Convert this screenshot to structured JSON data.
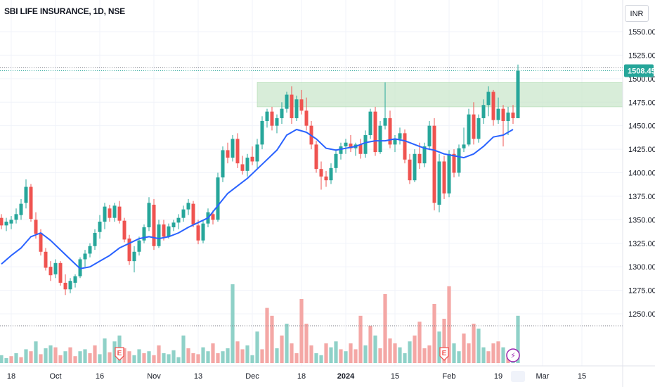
{
  "header": {
    "title": "SBI LIFE INSURANCE, 1D, NSE",
    "currency": "INR"
  },
  "colors": {
    "up": "#26a69a",
    "down": "#ef5350",
    "vol_up": "#8fd1c8",
    "vol_down": "#f4a7a5",
    "ma": "#2962ff",
    "zone": "#c8e6c9",
    "last_price_bg": "#26a69a"
  },
  "chart_data": {
    "type": "candlestick",
    "title": "SBI LIFE INSURANCE, 1D, NSE",
    "ylim": [
      1230,
      1565
    ],
    "y_ticks": [
      "1550.00",
      "1525.00",
      "1500.00",
      "1475.00",
      "1450.00",
      "1425.00",
      "1400.00",
      "1375.00",
      "1350.00",
      "1325.00",
      "1300.00",
      "1275.00",
      "1250.00"
    ],
    "x_tick_labels": [
      {
        "label": "18",
        "bold": false,
        "index": 2
      },
      {
        "label": "Oct",
        "bold": false,
        "index": 11
      },
      {
        "label": "16",
        "bold": false,
        "index": 20
      },
      {
        "label": "Nov",
        "bold": false,
        "index": 31
      },
      {
        "label": "13",
        "bold": false,
        "index": 40
      },
      {
        "label": "Dec",
        "bold": false,
        "index": 51
      },
      {
        "label": "18",
        "bold": false,
        "index": 61
      },
      {
        "label": "2024",
        "bold": true,
        "index": 70
      },
      {
        "label": "15",
        "bold": false,
        "index": 80
      },
      {
        "label": "Feb",
        "bold": false,
        "index": 91
      },
      {
        "label": "19",
        "bold": false,
        "index": 101
      },
      {
        "label": "Mar",
        "bold": false,
        "index": 110
      },
      {
        "label": "15",
        "bold": false,
        "index": 118
      }
    ],
    "last_price": 1508.45,
    "horizontal_lines": [
      1512,
      1508.45,
      1266
    ],
    "supply_zone": {
      "from_index": 52,
      "to_index": 125,
      "low": 1470,
      "high": 1496
    },
    "candles": [
      [
        1352,
        1356,
        1340,
        1344
      ],
      [
        1344,
        1352,
        1338,
        1348
      ],
      [
        1346,
        1354,
        1340,
        1350
      ],
      [
        1350,
        1362,
        1346,
        1356
      ],
      [
        1355,
        1372,
        1350,
        1367
      ],
      [
        1368,
        1393,
        1362,
        1385
      ],
      [
        1385,
        1388,
        1348,
        1351
      ],
      [
        1350,
        1358,
        1330,
        1335
      ],
      [
        1336,
        1340,
        1312,
        1316
      ],
      [
        1316,
        1320,
        1296,
        1299
      ],
      [
        1300,
        1306,
        1285,
        1291
      ],
      [
        1292,
        1308,
        1288,
        1304
      ],
      [
        1304,
        1306,
        1280,
        1283
      ],
      [
        1283,
        1292,
        1270,
        1276
      ],
      [
        1276,
        1288,
        1272,
        1285
      ],
      [
        1283,
        1292,
        1278,
        1290
      ],
      [
        1290,
        1310,
        1288,
        1308
      ],
      [
        1308,
        1318,
        1300,
        1314
      ],
      [
        1314,
        1325,
        1310,
        1322
      ],
      [
        1322,
        1340,
        1318,
        1336
      ],
      [
        1337,
        1355,
        1330,
        1348
      ],
      [
        1348,
        1368,
        1340,
        1364
      ],
      [
        1362,
        1366,
        1348,
        1352
      ],
      [
        1352,
        1368,
        1348,
        1365
      ],
      [
        1364,
        1370,
        1346,
        1349
      ],
      [
        1349,
        1352,
        1326,
        1329
      ],
      [
        1330,
        1334,
        1302,
        1306
      ],
      [
        1306,
        1322,
        1294,
        1316
      ],
      [
        1316,
        1332,
        1312,
        1328
      ],
      [
        1328,
        1345,
        1325,
        1342
      ],
      [
        1342,
        1374,
        1338,
        1368
      ],
      [
        1366,
        1372,
        1318,
        1322
      ],
      [
        1322,
        1350,
        1320,
        1345
      ],
      [
        1345,
        1350,
        1328,
        1332
      ],
      [
        1332,
        1346,
        1330,
        1343
      ],
      [
        1342,
        1350,
        1338,
        1347
      ],
      [
        1347,
        1356,
        1340,
        1352
      ],
      [
        1352,
        1365,
        1348,
        1361
      ],
      [
        1361,
        1372,
        1355,
        1368
      ],
      [
        1367,
        1370,
        1342,
        1345
      ],
      [
        1344,
        1350,
        1324,
        1328
      ],
      [
        1328,
        1350,
        1325,
        1346
      ],
      [
        1346,
        1362,
        1342,
        1358
      ],
      [
        1356,
        1360,
        1345,
        1350
      ],
      [
        1350,
        1400,
        1348,
        1395
      ],
      [
        1395,
        1428,
        1390,
        1424
      ],
      [
        1424,
        1432,
        1410,
        1416
      ],
      [
        1416,
        1440,
        1412,
        1436
      ],
      [
        1436,
        1442,
        1405,
        1410
      ],
      [
        1409,
        1418,
        1398,
        1402
      ],
      [
        1402,
        1420,
        1396,
        1416
      ],
      [
        1417,
        1428,
        1408,
        1412
      ],
      [
        1412,
        1436,
        1405,
        1430
      ],
      [
        1430,
        1460,
        1425,
        1455
      ],
      [
        1455,
        1468,
        1448,
        1465
      ],
      [
        1465,
        1470,
        1445,
        1450
      ],
      [
        1450,
        1462,
        1442,
        1458
      ],
      [
        1458,
        1475,
        1452,
        1468
      ],
      [
        1468,
        1486,
        1464,
        1483
      ],
      [
        1483,
        1492,
        1452,
        1458
      ],
      [
        1458,
        1482,
        1455,
        1478
      ],
      [
        1478,
        1488,
        1462,
        1466
      ],
      [
        1466,
        1480,
        1445,
        1450
      ],
      [
        1450,
        1455,
        1425,
        1430
      ],
      [
        1430,
        1434,
        1400,
        1404
      ],
      [
        1404,
        1412,
        1382,
        1396
      ],
      [
        1396,
        1402,
        1385,
        1392
      ],
      [
        1392,
        1410,
        1388,
        1405
      ],
      [
        1405,
        1425,
        1400,
        1420
      ],
      [
        1420,
        1432,
        1414,
        1428
      ],
      [
        1428,
        1436,
        1420,
        1432
      ],
      [
        1431,
        1440,
        1422,
        1426
      ],
      [
        1426,
        1432,
        1418,
        1430
      ],
      [
        1430,
        1436,
        1415,
        1420
      ],
      [
        1420,
        1445,
        1416,
        1440
      ],
      [
        1440,
        1468,
        1436,
        1465
      ],
      [
        1465,
        1470,
        1418,
        1422
      ],
      [
        1422,
        1455,
        1420,
        1450
      ],
      [
        1450,
        1496,
        1446,
        1458
      ],
      [
        1458,
        1466,
        1426,
        1430
      ],
      [
        1430,
        1440,
        1422,
        1436
      ],
      [
        1436,
        1448,
        1430,
        1442
      ],
      [
        1442,
        1446,
        1410,
        1414
      ],
      [
        1414,
        1420,
        1388,
        1392
      ],
      [
        1392,
        1425,
        1390,
        1420
      ],
      [
        1420,
        1432,
        1404,
        1410
      ],
      [
        1410,
        1432,
        1406,
        1428
      ],
      [
        1428,
        1455,
        1424,
        1450
      ],
      [
        1450,
        1458,
        1360,
        1368
      ],
      [
        1366,
        1420,
        1358,
        1412
      ],
      [
        1412,
        1418,
        1372,
        1378
      ],
      [
        1378,
        1424,
        1374,
        1420
      ],
      [
        1420,
        1425,
        1395,
        1400
      ],
      [
        1400,
        1430,
        1396,
        1426
      ],
      [
        1426,
        1448,
        1422,
        1430
      ],
      [
        1430,
        1468,
        1428,
        1462
      ],
      [
        1462,
        1475,
        1430,
        1436
      ],
      [
        1436,
        1462,
        1432,
        1458
      ],
      [
        1458,
        1478,
        1452,
        1472
      ],
      [
        1472,
        1492,
        1460,
        1486
      ],
      [
        1486,
        1488,
        1450,
        1456
      ],
      [
        1456,
        1480,
        1452,
        1468
      ],
      [
        1468,
        1472,
        1428,
        1455
      ],
      [
        1455,
        1470,
        1440,
        1464
      ],
      [
        1464,
        1472,
        1452,
        1458
      ],
      [
        1458,
        1515,
        1458,
        1508.45
      ]
    ],
    "volume": [
      [
        1,
        8
      ],
      [
        1,
        5
      ],
      [
        0,
        7
      ],
      [
        1,
        10
      ],
      [
        0,
        6
      ],
      [
        1,
        14
      ],
      [
        0,
        12
      ],
      [
        1,
        22
      ],
      [
        0,
        9
      ],
      [
        1,
        15
      ],
      [
        1,
        18
      ],
      [
        0,
        16
      ],
      [
        0,
        8
      ],
      [
        1,
        12
      ],
      [
        0,
        16
      ],
      [
        0,
        7
      ],
      [
        1,
        12
      ],
      [
        1,
        14
      ],
      [
        0,
        10
      ],
      [
        0,
        18
      ],
      [
        1,
        9
      ],
      [
        1,
        25
      ],
      [
        0,
        11
      ],
      [
        1,
        22
      ],
      [
        1,
        28
      ],
      [
        0,
        15
      ],
      [
        0,
        12
      ],
      [
        1,
        8
      ],
      [
        1,
        14
      ],
      [
        0,
        10
      ],
      [
        1,
        12
      ],
      [
        0,
        8
      ],
      [
        0,
        18
      ],
      [
        1,
        10
      ],
      [
        1,
        9
      ],
      [
        1,
        13
      ],
      [
        1,
        6
      ],
      [
        1,
        28
      ],
      [
        0,
        15
      ],
      [
        0,
        10
      ],
      [
        0,
        9
      ],
      [
        1,
        16
      ],
      [
        1,
        12
      ],
      [
        0,
        20
      ],
      [
        0,
        10
      ],
      [
        1,
        12
      ],
      [
        1,
        15
      ],
      [
        1,
        80
      ],
      [
        0,
        22
      ],
      [
        0,
        14
      ],
      [
        1,
        18
      ],
      [
        1,
        8
      ],
      [
        1,
        32
      ],
      [
        0,
        14
      ],
      [
        0,
        56
      ],
      [
        0,
        48
      ],
      [
        1,
        15
      ],
      [
        0,
        28
      ],
      [
        1,
        40
      ],
      [
        0,
        20
      ],
      [
        0,
        10
      ],
      [
        0,
        65
      ],
      [
        0,
        40
      ],
      [
        0,
        18
      ],
      [
        1,
        10
      ],
      [
        1,
        8
      ],
      [
        0,
        20
      ],
      [
        1,
        16
      ],
      [
        1,
        22
      ],
      [
        0,
        14
      ],
      [
        1,
        12
      ],
      [
        0,
        20
      ],
      [
        0,
        14
      ],
      [
        0,
        48
      ],
      [
        1,
        18
      ],
      [
        0,
        38
      ],
      [
        1,
        28
      ],
      [
        0,
        15
      ],
      [
        0,
        70
      ],
      [
        0,
        25
      ],
      [
        0,
        20
      ],
      [
        1,
        16
      ],
      [
        1,
        10
      ],
      [
        1,
        22
      ],
      [
        0,
        28
      ],
      [
        0,
        42
      ],
      [
        0,
        15
      ],
      [
        0,
        18
      ],
      [
        0,
        60
      ],
      [
        1,
        32
      ],
      [
        0,
        45
      ],
      [
        0,
        78
      ],
      [
        1,
        20
      ],
      [
        1,
        12
      ],
      [
        0,
        30
      ],
      [
        0,
        20
      ],
      [
        0,
        40
      ],
      [
        1,
        35
      ],
      [
        1,
        16
      ],
      [
        0,
        12
      ],
      [
        0,
        20
      ],
      [
        0,
        22
      ],
      [
        1,
        16
      ],
      [
        0,
        10
      ],
      [
        1,
        8
      ],
      [
        1,
        48
      ]
    ],
    "moving_average": [
      [
        0,
        1303
      ],
      [
        2,
        1312
      ],
      [
        4,
        1320
      ],
      [
        6,
        1332
      ],
      [
        8,
        1336
      ],
      [
        10,
        1328
      ],
      [
        12,
        1318
      ],
      [
        14,
        1308
      ],
      [
        16,
        1298
      ],
      [
        18,
        1300
      ],
      [
        20,
        1306
      ],
      [
        22,
        1312
      ],
      [
        24,
        1320
      ],
      [
        26,
        1325
      ],
      [
        28,
        1330
      ],
      [
        30,
        1332
      ],
      [
        32,
        1330
      ],
      [
        34,
        1332
      ],
      [
        36,
        1336
      ],
      [
        38,
        1342
      ],
      [
        40,
        1347
      ],
      [
        42,
        1352
      ],
      [
        44,
        1365
      ],
      [
        46,
        1378
      ],
      [
        48,
        1386
      ],
      [
        50,
        1394
      ],
      [
        52,
        1404
      ],
      [
        54,
        1414
      ],
      [
        56,
        1424
      ],
      [
        58,
        1440
      ],
      [
        60,
        1446
      ],
      [
        62,
        1443
      ],
      [
        64,
        1436
      ],
      [
        66,
        1426
      ],
      [
        68,
        1424
      ],
      [
        70,
        1426
      ],
      [
        72,
        1428
      ],
      [
        74,
        1432
      ],
      [
        76,
        1434
      ],
      [
        78,
        1434
      ],
      [
        80,
        1436
      ],
      [
        82,
        1434
      ],
      [
        84,
        1430
      ],
      [
        86,
        1426
      ],
      [
        88,
        1424
      ],
      [
        90,
        1420
      ],
      [
        92,
        1418
      ],
      [
        94,
        1416
      ],
      [
        96,
        1420
      ],
      [
        98,
        1428
      ],
      [
        100,
        1438
      ],
      [
        102,
        1440
      ],
      [
        104,
        1446
      ]
    ],
    "event_markers": [
      {
        "label": "E",
        "index": 24,
        "color": "#ef5350"
      },
      {
        "label": "E",
        "index": 90,
        "color": "#ef5350"
      },
      {
        "label": "⚡",
        "index": 104,
        "color": "#9c27b0"
      }
    ],
    "volume_baseline_ref_index": 105
  }
}
